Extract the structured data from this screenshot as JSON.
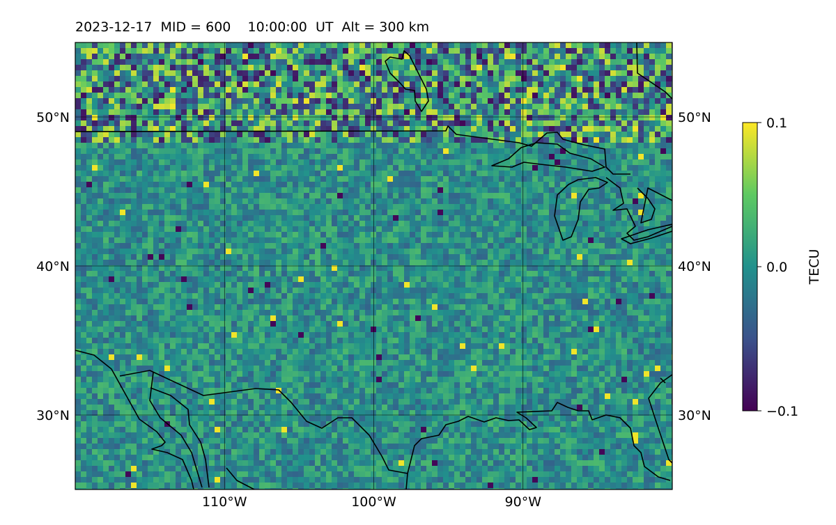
{
  "title": "2023-12-17  MID = 600    10:00:00  UT  Alt = 300 km",
  "map": {
    "lon_range": [
      -120,
      -80
    ],
    "lat_range": [
      25,
      55
    ],
    "lon_ticks": [
      {
        "value": -110,
        "label": "110°W"
      },
      {
        "value": -100,
        "label": "100°W"
      },
      {
        "value": -90,
        "label": "90°W"
      }
    ],
    "lat_ticks": [
      {
        "value": 30,
        "label": "30°N"
      },
      {
        "value": 40,
        "label": "40°N"
      },
      {
        "value": 50,
        "label": "50°N"
      }
    ],
    "gridlines": true,
    "field_colors": {
      "background": "#2e8b8c"
    }
  },
  "colorbar": {
    "label": "TECU",
    "min": -0.1,
    "max": 0.1,
    "ticks": [
      {
        "value": 0.1,
        "label": "0.1"
      },
      {
        "value": 0.0,
        "label": "0.0"
      },
      {
        "value": -0.1,
        "label": "−0.1"
      }
    ],
    "colormap": "viridis",
    "stops": [
      "#440154",
      "#3b528b",
      "#21918c",
      "#5ec962",
      "#fde725"
    ]
  },
  "chart_data": {
    "type": "heatmap",
    "title": "2023-12-17  MID = 600    10:00:00  UT  Alt = 300 km",
    "xlabel": "",
    "ylabel": "",
    "colorbar_label": "TECU",
    "value_range": [
      -0.1,
      0.1
    ],
    "x_ticks": [
      "110°W",
      "100°W",
      "90°W"
    ],
    "y_ticks": [
      "30°N",
      "40°N",
      "50°N"
    ],
    "grid": true
  }
}
